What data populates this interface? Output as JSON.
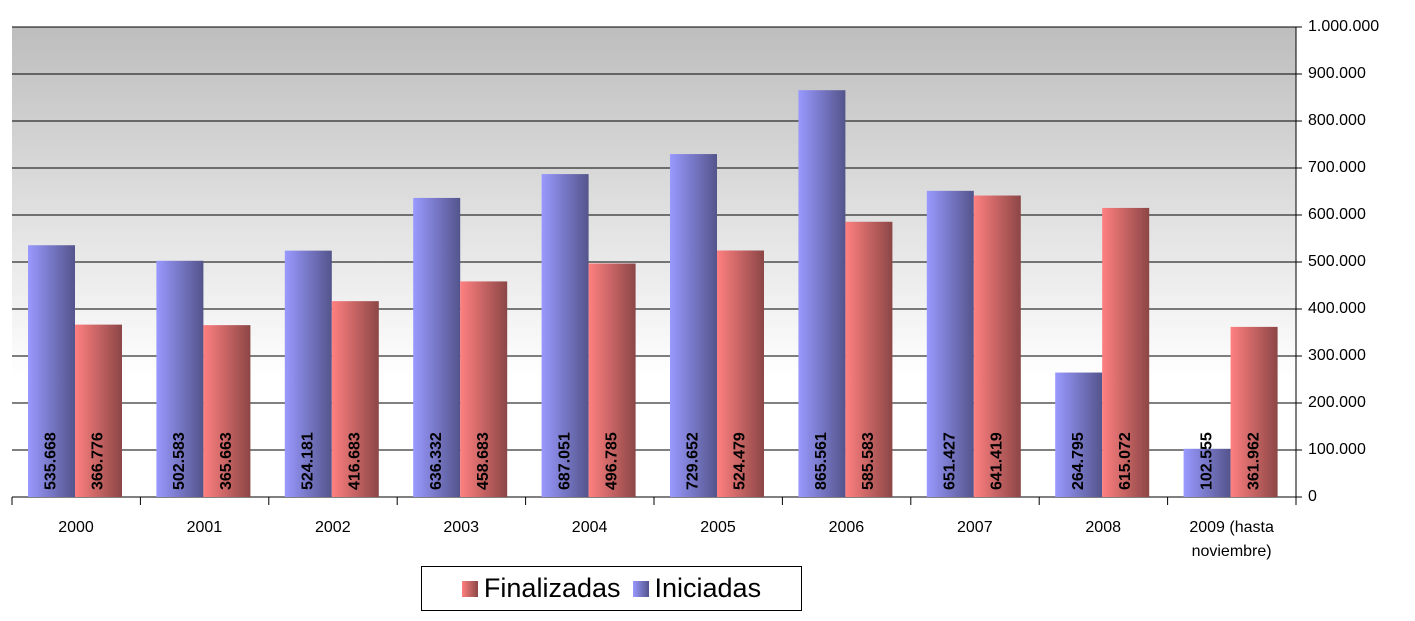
{
  "chart_data": {
    "type": "bar",
    "categories": [
      "2000",
      "2001",
      "2002",
      "2003",
      "2004",
      "2005",
      "2006",
      "2007",
      "2008",
      "2009 (hasta noviembre)"
    ],
    "series": [
      {
        "name": "Iniciadas",
        "color": "#9999ff",
        "values": [
          535668,
          502583,
          524181,
          636332,
          687051,
          729652,
          865561,
          651427,
          264795,
          102555
        ],
        "value_labels": [
          "535.668",
          "502.583",
          "524.181",
          "636.332",
          "687.051",
          "729.652",
          "865.561",
          "651.427",
          "264.795",
          "102.555"
        ]
      },
      {
        "name": "Finalizadas",
        "color": "#ff8080",
        "values": [
          366776,
          365663,
          416683,
          458683,
          496785,
          524479,
          585583,
          641419,
          615072,
          361962
        ],
        "value_labels": [
          "366.776",
          "365.663",
          "416.683",
          "458.683",
          "496.785",
          "524.479",
          "585.583",
          "641.419",
          "615.072",
          "361.962"
        ]
      }
    ],
    "ylim": [
      0,
      1000000
    ],
    "yticks": [
      0,
      {
        "value": 100000,
        "label": "100.000"
      },
      {
        "value": 200000,
        "label": "200.000"
      },
      {
        "value": 300000,
        "label": "300.000"
      },
      {
        "value": 400000,
        "label": "400.000"
      },
      {
        "value": 500000,
        "label": "500.000"
      },
      {
        "value": 600000,
        "label": "600.000"
      },
      {
        "value": 700000,
        "label": "700.000"
      },
      {
        "value": 800000,
        "label": "800.000"
      },
      {
        "value": 900000,
        "label": "900.000"
      },
      {
        "value": 1000000,
        "label": "1.000.000"
      }
    ],
    "grid": true
  }
}
